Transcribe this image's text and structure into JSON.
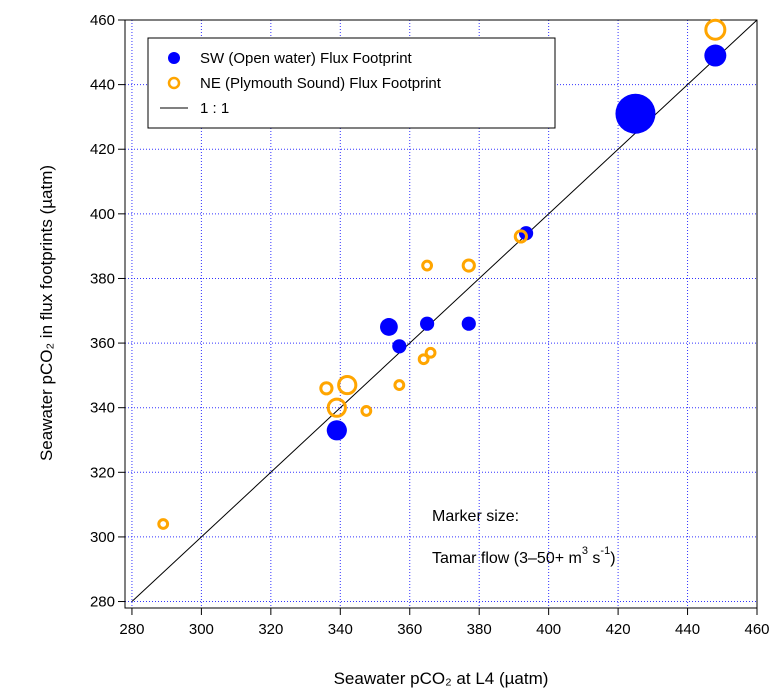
{
  "chart_data": {
    "type": "scatter",
    "x_label": "Seawater pCO₂ at L4 (µatm)",
    "y_label": "Seawater pCO₂ in flux footprints (µatm)",
    "xlim": [
      278,
      460
    ],
    "ylim": [
      278,
      460
    ],
    "xticks": [
      280,
      300,
      320,
      340,
      360,
      380,
      400,
      420,
      440,
      460
    ],
    "yticks": [
      280,
      300,
      320,
      340,
      360,
      380,
      400,
      420,
      440,
      460
    ],
    "grid": true,
    "legend": "upper left",
    "series": [
      {
        "name": "SW (Open water) Flux Footprint",
        "color": "#0000ff",
        "filled": true,
        "x": [
          339,
          354,
          357,
          365,
          377,
          393.5,
          425,
          448
        ],
        "values": [
          333,
          365,
          359,
          366,
          366,
          394,
          431,
          449
        ],
        "sizes": [
          17,
          13,
          7,
          7,
          7,
          7,
          50,
          20
        ]
      },
      {
        "name": "NE (Plymouth Sound) Flux Footprint",
        "color": "#ffa500",
        "filled": false,
        "x": [
          289,
          336,
          339,
          342,
          347.5,
          357,
          364,
          366,
          365,
          377,
          392,
          448
        ],
        "values": [
          304,
          346,
          340,
          347,
          339,
          347,
          355,
          357,
          384,
          384,
          393,
          457
        ],
        "sizes": [
          3,
          7,
          17,
          17,
          3,
          3,
          3,
          3,
          3,
          7,
          7,
          20
        ]
      }
    ],
    "reference_line": {
      "name": "1 : 1",
      "color": "#000000",
      "x": [
        280,
        460
      ],
      "values": [
        280,
        460
      ]
    },
    "annotation": {
      "line1": "Marker size:",
      "line2": [
        "Tamar flow (3–50+ m",
        "3",
        " s",
        "-1",
        ")"
      ]
    }
  }
}
